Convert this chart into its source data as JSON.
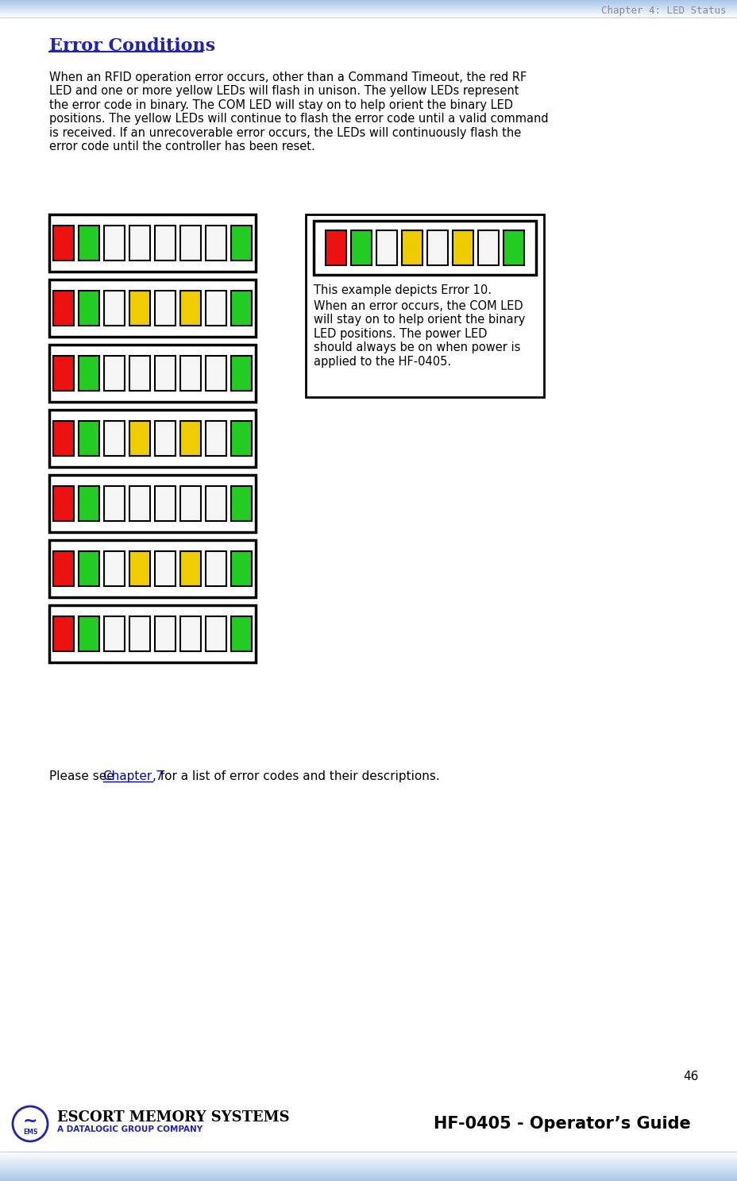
{
  "title_header": "Chapter 4: LED Status",
  "section_title": "Error Conditions",
  "body_text": "When an RFID operation error occurs, other than a Command Timeout, the red RF\nLED and one or more yellow LEDs will flash in unison. The yellow LEDs represent\nthe error code in binary. The COM LED will stay on to help orient the binary LED\npositions. The yellow LEDs will continue to flash the error code until a valid command\nis received. If an unrecoverable error occurs, the LEDs will continuously flash the\nerror code until the controller has been reset.",
  "please_see_text": "Please see ",
  "chapter7_text": "Chapter 7",
  "please_see_text2": ", for a list of error codes and their descriptions.",
  "box_note_title": "This example depicts Error 10.",
  "box_note_body": "When an error occurs, the COM LED\nwill stay on to help orient the binary\nLED positions. The power LED\nshould always be on when power is\napplied to the HF-0405.",
  "page_number": "46",
  "footer_company": "ESCORT MEMORY SYSTEMS",
  "footer_sub": "A DATALOGIC GROUP COMPANY",
  "footer_guide": "HF-0405 - Operator’s Guide",
  "section_title_color": "#2222aa",
  "led_rows": [
    [
      "red",
      "green",
      "white",
      "white",
      "white",
      "white",
      "white",
      "green"
    ],
    [
      "red",
      "green",
      "white",
      "yellow",
      "white",
      "yellow",
      "white",
      "green"
    ],
    [
      "red",
      "green",
      "white",
      "white",
      "white",
      "white",
      "white",
      "green"
    ],
    [
      "red",
      "green",
      "white",
      "yellow",
      "white",
      "yellow",
      "white",
      "green"
    ],
    [
      "red",
      "green",
      "white",
      "white",
      "white",
      "white",
      "white",
      "green"
    ],
    [
      "red",
      "green",
      "white",
      "yellow",
      "white",
      "yellow",
      "white",
      "green"
    ],
    [
      "red",
      "green",
      "white",
      "white",
      "white",
      "white",
      "white",
      "green"
    ]
  ],
  "box_led_colors": [
    "red",
    "green",
    "white",
    "yellow",
    "white",
    "yellow",
    "white",
    "green"
  ]
}
